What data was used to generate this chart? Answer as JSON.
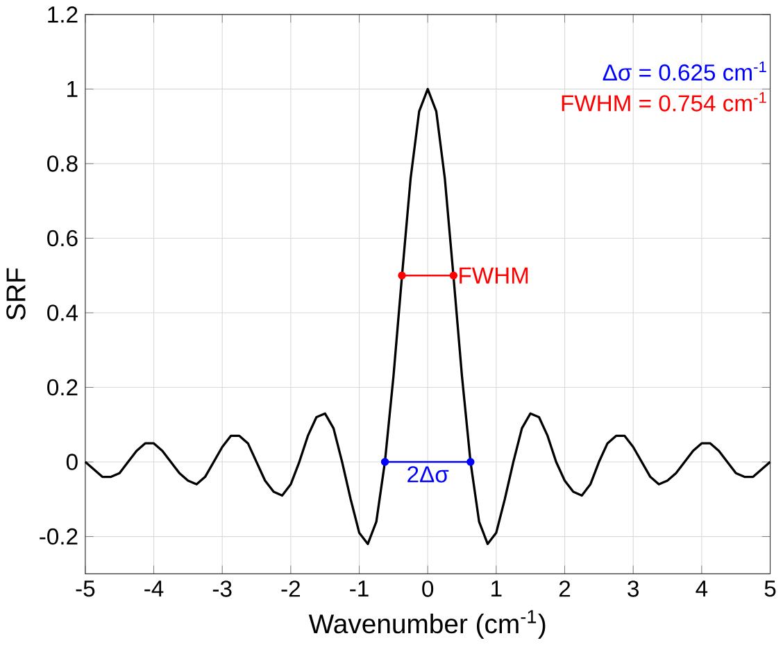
{
  "chart_data": {
    "type": "line",
    "xlabel": "Wavenumber (cm$^{-1}$)",
    "ylabel": "SRF",
    "annotations": [
      "Δσ = 0.625 cm$^{-1}$",
      "FWHM = 0.754 cm$^{-1}$"
    ],
    "series": [
      {
        "color": "#000000",
        "x": [
          -5,
          -4.875,
          -4.75,
          -4.625,
          -4.5,
          -4.375,
          -4.25,
          -4.125,
          -4,
          -3.875,
          -3.75,
          -3.625,
          -3.5,
          -3.375,
          -3.25,
          -3.125,
          -3,
          -2.875,
          -2.75,
          -2.625,
          -2.5,
          -2.375,
          -2.25,
          -2.125,
          -2,
          -1.875,
          -1.75,
          -1.625,
          -1.5,
          -1.375,
          -1.25,
          -1.125,
          -1,
          -0.875,
          -0.75,
          -0.625,
          -0.5,
          -0.375,
          -0.25,
          -0.125,
          0,
          0.125,
          0.25,
          0.375,
          0.5,
          0.625,
          0.75,
          0.875,
          1,
          1.125,
          1.25,
          1.375,
          1.5,
          1.625,
          1.75,
          1.875,
          2,
          2.125,
          2.25,
          2.375,
          2.5,
          2.625,
          2.75,
          2.875,
          3,
          3.125,
          3.25,
          3.375,
          3.5,
          3.625,
          3.75,
          3.875,
          4,
          4.125,
          4.25,
          4.375,
          4.5,
          4.625,
          4.75,
          4.875,
          5
        ],
        "values": [
          0,
          -0.02,
          -0.04,
          -0.04,
          -0.03,
          0,
          0.03,
          0.05,
          0.05,
          0.03,
          0,
          -0.03,
          -0.05,
          -0.06,
          -0.04,
          0,
          0.04,
          0.07,
          0.07,
          0.05,
          0,
          -0.05,
          -0.08,
          -0.09,
          -0.06,
          0,
          0.07,
          0.12,
          0.13,
          0.09,
          0,
          -0.1,
          -0.19,
          -0.22,
          -0.16,
          0,
          0.23,
          0.5,
          0.76,
          0.94,
          1.0,
          0.94,
          0.76,
          0.5,
          0.23,
          0,
          -0.16,
          -0.22,
          -0.19,
          -0.1,
          0,
          0.09,
          0.13,
          0.12,
          0.07,
          0,
          -0.05,
          -0.08,
          -0.09,
          -0.06,
          0,
          0.05,
          0.07,
          0.07,
          0.04,
          0,
          -0.04,
          -0.06,
          -0.05,
          -0.03,
          0,
          0.03,
          0.05,
          0.05,
          0.03,
          0,
          -0.03,
          -0.04,
          -0.04,
          -0.02,
          0
        ]
      },
      {
        "name": "FWHM",
        "color": "#ff0000",
        "marker": "circle",
        "x": [
          -0.377,
          0.377
        ],
        "values": [
          0.5,
          0.5
        ]
      },
      {
        "name": "2Δσ",
        "color": "#0000ff",
        "marker": "circle",
        "x": [
          -0.625,
          0.625
        ],
        "values": [
          0,
          0
        ]
      }
    ],
    "xlim": [
      -5,
      5
    ],
    "xticks": [
      -5,
      -4,
      -3,
      -2,
      -1,
      0,
      1,
      2,
      3,
      4,
      5
    ],
    "ylim": [
      -0.3,
      1.2
    ],
    "yticks": [
      -0.2,
      0,
      0.2,
      0.4,
      0.6,
      0.8,
      1,
      1.2
    ],
    "grid": true
  }
}
